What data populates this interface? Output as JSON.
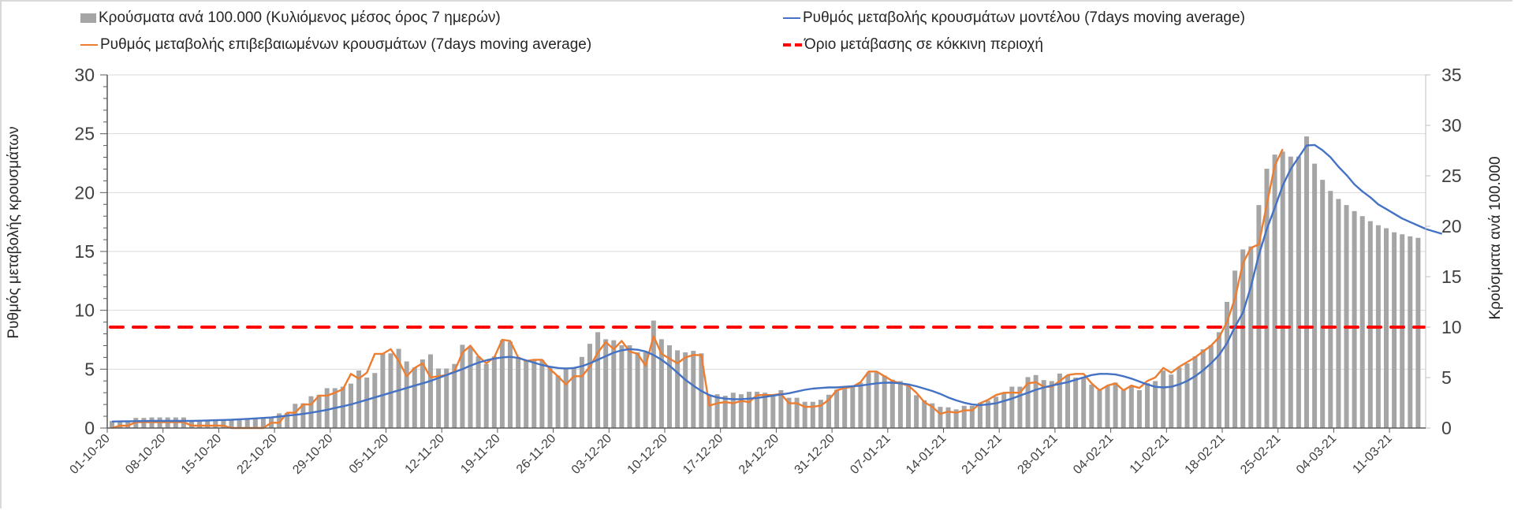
{
  "chart_data": {
    "type": "bar+line",
    "title": "",
    "start_date": "01-10-20",
    "x_tick_labels": [
      "01-10-20",
      "08-10-20",
      "15-10-20",
      "22-10-20",
      "29-10-20",
      "05-11-20",
      "12-11-20",
      "19-11-20",
      "26-11-20",
      "03-12-20",
      "10-12-20",
      "17-12-20",
      "24-12-20",
      "31-12-20",
      "07-01-21",
      "14-01-21",
      "21-01-21",
      "28-01-21",
      "04-02-21",
      "11-02-21",
      "18-02-21",
      "25-02-21",
      "04-03-21",
      "11-03-21"
    ],
    "y_left": {
      "label": "Ρυθμός μεταβολής κρουσμάτων",
      "range": [
        0,
        30
      ],
      "ticks": [
        0,
        5,
        10,
        15,
        20,
        25,
        30
      ],
      "tick_labels": [
        "0",
        "5",
        "10",
        "15",
        "20",
        "25",
        "30"
      ]
    },
    "y_right": {
      "label": "Κρούσματα ανά 100.000",
      "range": [
        0,
        35
      ],
      "ticks": [
        0,
        5,
        10,
        15,
        20,
        25,
        30,
        35
      ],
      "tick_labels": [
        "0",
        "5",
        "10",
        "15",
        "20",
        "25",
        "30",
        "35"
      ]
    },
    "grid": true,
    "legend_position": "top",
    "series": [
      {
        "name": "Κρούσματα ανά 100.000 (Κυλιόμενος μέσος όρος 7 ημερών)",
        "kind": "bar",
        "axis": "right",
        "color": "#a5a5a5",
        "values": [
          0.7,
          0.7,
          0.7,
          1.0,
          1.0,
          1.05,
          1.05,
          1.05,
          1.05,
          1.05,
          0.75,
          0.75,
          0.75,
          0.8,
          0.8,
          0.85,
          0.85,
          0.95,
          0.95,
          1.0,
          1.0,
          1.45,
          1.5,
          2.4,
          2.45,
          3.15,
          3.3,
          3.95,
          3.95,
          4.1,
          4.4,
          5.7,
          5.0,
          5.45,
          7.4,
          7.4,
          7.85,
          6.6,
          6.0,
          6.8,
          7.3,
          5.9,
          5.9,
          6.35,
          8.25,
          8.05,
          7.1,
          6.35,
          7.1,
          8.7,
          8.55,
          6.95,
          6.75,
          6.8,
          6.75,
          6.0,
          5.2,
          6.0,
          6.0,
          7.05,
          8.35,
          9.5,
          8.8,
          8.7,
          8.2,
          8.2,
          7.5,
          7.5,
          10.65,
          8.8,
          8.2,
          7.7,
          7.5,
          7.65,
          7.4,
          3.2,
          3.35,
          3.2,
          3.5,
          3.35,
          3.6,
          3.6,
          3.5,
          3.35,
          3.75,
          3.0,
          3.0,
          2.6,
          2.6,
          2.8,
          3.3,
          3.8,
          3.9,
          4.15,
          4.5,
          5.5,
          5.5,
          5.2,
          4.8,
          4.65,
          4.15,
          3.25,
          2.75,
          2.45,
          2.1,
          2.05,
          1.85,
          2.2,
          2.2,
          2.5,
          2.7,
          3.1,
          3.5,
          4.1,
          4.1,
          5.05,
          5.25,
          4.75,
          4.65,
          5.4,
          5.2,
          5.0,
          5.0,
          4.3,
          3.75,
          4.15,
          4.5,
          3.75,
          4.15,
          3.75,
          4.45,
          4.65,
          5.7,
          5.3,
          6.0,
          6.4,
          7.1,
          7.8,
          8.2,
          9.5,
          12.5,
          15.6,
          17.7,
          18.0,
          22.1,
          25.7,
          27.1,
          27.4,
          26.9,
          26.9,
          28.9,
          26.2,
          24.6,
          23.5,
          22.7,
          22.1,
          21.5,
          21.0,
          20.5,
          20.1,
          19.8,
          19.4,
          19.2,
          19.0,
          18.85
        ]
      },
      {
        "name": "Ρυθμός μεταβολής επιβεβαιωμένων κρουσμάτων (7days moving average)",
        "kind": "line",
        "axis": "left",
        "color": "#ed7d31",
        "values": [
          0.0,
          0.2,
          0.2,
          0.5,
          0.5,
          0.5,
          0.5,
          0.5,
          0.5,
          0.5,
          0.2,
          0.2,
          0.2,
          0.2,
          0.2,
          0.0,
          0.0,
          0.0,
          0.0,
          0.0,
          0.45,
          0.45,
          1.3,
          1.3,
          2.0,
          2.0,
          2.75,
          2.75,
          3.0,
          3.3,
          4.6,
          4.2,
          4.7,
          6.3,
          6.3,
          6.7,
          5.7,
          4.4,
          5.1,
          5.5,
          4.3,
          4.4,
          4.5,
          4.8,
          6.4,
          7.0,
          6.1,
          5.5,
          6.0,
          7.5,
          7.4,
          6.0,
          5.7,
          5.8,
          5.8,
          5.0,
          4.4,
          3.7,
          4.4,
          4.4,
          5.2,
          6.4,
          7.3,
          6.7,
          7.4,
          6.5,
          6.3,
          5.3,
          7.8,
          6.3,
          5.9,
          5.5,
          6.0,
          6.2,
          6.2,
          1.9,
          2.1,
          2.2,
          2.1,
          2.3,
          2.2,
          2.8,
          2.8,
          2.8,
          2.9,
          2.1,
          2.1,
          1.8,
          1.8,
          1.9,
          2.4,
          3.2,
          3.4,
          3.5,
          3.9,
          4.8,
          4.8,
          4.4,
          4.0,
          3.8,
          3.6,
          3.0,
          2.2,
          1.8,
          1.2,
          1.4,
          1.3,
          1.5,
          1.5,
          2.1,
          2.4,
          2.8,
          3.0,
          3.0,
          3.0,
          3.8,
          3.9,
          3.5,
          3.5,
          4.0,
          4.5,
          4.6,
          4.6,
          3.8,
          3.2,
          3.6,
          3.8,
          3.2,
          3.6,
          3.4,
          4.0,
          4.3,
          5.1,
          4.7,
          5.2,
          5.6,
          6.0,
          6.5,
          7.0,
          7.7,
          9.0,
          11.0,
          14.0,
          15.3,
          15.6,
          19.0,
          22.3,
          23.7
        ]
      },
      {
        "name": "Ρυθμός μεταβολής κρουσμάτων μοντέλου (7days moving average)",
        "kind": "line",
        "axis": "left",
        "color": "#4472c4",
        "values": [
          0.55,
          0.56,
          0.57,
          0.58,
          0.59,
          0.6,
          0.6,
          0.6,
          0.6,
          0.6,
          0.6,
          0.62,
          0.64,
          0.66,
          0.68,
          0.7,
          0.74,
          0.78,
          0.82,
          0.86,
          0.9,
          0.97,
          1.05,
          1.12,
          1.2,
          1.3,
          1.42,
          1.55,
          1.7,
          1.85,
          2.0,
          2.2,
          2.4,
          2.6,
          2.8,
          3.0,
          3.2,
          3.4,
          3.6,
          3.8,
          4.0,
          4.25,
          4.5,
          4.75,
          5.0,
          5.3,
          5.55,
          5.75,
          5.9,
          6.0,
          6.05,
          5.95,
          5.75,
          5.55,
          5.35,
          5.2,
          5.1,
          5.05,
          5.1,
          5.25,
          5.5,
          5.8,
          6.1,
          6.4,
          6.6,
          6.7,
          6.65,
          6.5,
          6.2,
          5.8,
          5.3,
          4.7,
          4.1,
          3.6,
          3.15,
          2.8,
          2.6,
          2.5,
          2.45,
          2.45,
          2.5,
          2.55,
          2.65,
          2.75,
          2.85,
          2.95,
          3.1,
          3.25,
          3.35,
          3.4,
          3.45,
          3.45,
          3.5,
          3.55,
          3.6,
          3.7,
          3.8,
          3.85,
          3.85,
          3.8,
          3.7,
          3.55,
          3.35,
          3.15,
          2.9,
          2.6,
          2.35,
          2.15,
          2.0,
          1.95,
          2.0,
          2.1,
          2.3,
          2.5,
          2.75,
          3.0,
          3.25,
          3.45,
          3.6,
          3.75,
          3.9,
          4.1,
          4.3,
          4.5,
          4.6,
          4.6,
          4.55,
          4.4,
          4.2,
          3.95,
          3.7,
          3.5,
          3.45,
          3.5,
          3.7,
          4.0,
          4.4,
          4.9,
          5.5,
          6.2,
          7.2,
          8.6,
          9.8,
          12.0,
          14.7,
          16.9,
          18.7,
          20.6,
          22.0,
          23.0,
          24.0,
          24.05,
          23.6,
          23.0,
          22.2,
          21.5,
          20.7,
          20.1,
          19.6,
          19.0,
          18.6,
          18.2,
          17.8,
          17.5,
          17.2,
          16.9,
          16.7,
          16.5
        ]
      },
      {
        "name": "Όριο μετάβασης σε κόκκινη περιοχή",
        "kind": "hline",
        "axis": "right",
        "color": "#ff0000",
        "value": 10
      }
    ]
  },
  "legend": {
    "bars": "Κρούσματα ανά 100.000 (Κυλιόμενος μέσος όρος 7 ημερών)",
    "orange": "Ρυθμός μεταβολής επιβεβαιωμένων κρουσμάτων (7days moving average)",
    "blue": "Ρυθμός μεταβολής κρουσμάτων μοντέλου (7days moving average)",
    "red": "Όριο μετάβασης σε κόκκινη περιοχή"
  }
}
